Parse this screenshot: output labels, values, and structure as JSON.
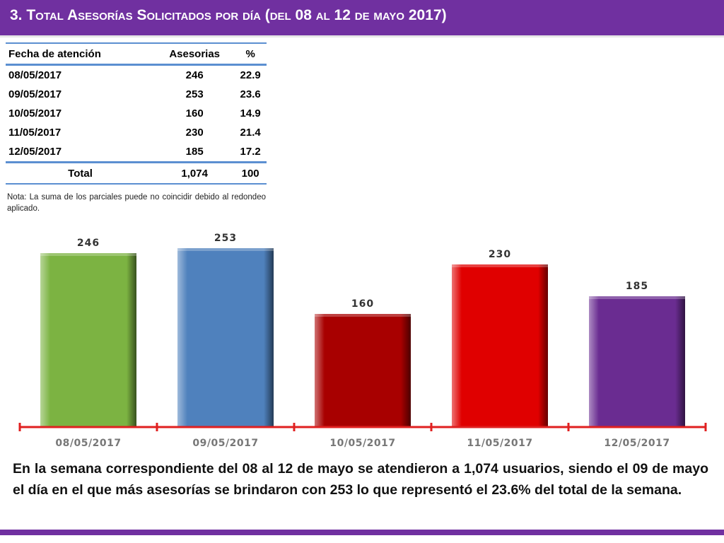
{
  "header": {
    "title": "3.  Total Asesorías Solicitados por día  (del 08 al 12 de mayo  2017)",
    "background": "#7030a0"
  },
  "table": {
    "headers": [
      "Fecha de atención",
      "Asesorias",
      "%"
    ],
    "rows": [
      [
        "08/05/2017",
        "246",
        "22.9"
      ],
      [
        "09/05/2017",
        "253",
        "23.6"
      ],
      [
        "10/05/2017",
        "160",
        "14.9"
      ],
      [
        "11/05/2017",
        "230",
        "21.4"
      ],
      [
        "12/05/2017",
        "185",
        "17.2"
      ]
    ],
    "total": [
      "Total",
      "1,074",
      "100"
    ],
    "rule_color": "#5b8fd1"
  },
  "note": "Nota: La suma de los parciales puede no coincidir debido al redondeo aplicado.",
  "chart_data": {
    "type": "bar",
    "categories": [
      "08/05/2017",
      "09/05/2017",
      "10/05/2017",
      "11/05/2017",
      "12/05/2017"
    ],
    "values": [
      246,
      253,
      160,
      230,
      185
    ],
    "colors": [
      "#7cb342",
      "#4f81bd",
      "#a80000",
      "#e00000",
      "#6a2c91"
    ],
    "title": "",
    "xlabel": "",
    "ylabel": "",
    "ylim": [
      0,
      270
    ],
    "grid": false,
    "legend": "none",
    "axis_color": "#e02020"
  },
  "summary": "En la semana correspondiente del 08 al 12 de mayo se atendieron a 1,074 usuarios, siendo el 09 de mayo el día en el que más asesorías se brindaron con 253 lo que representó el 23.6% del total de la semana."
}
